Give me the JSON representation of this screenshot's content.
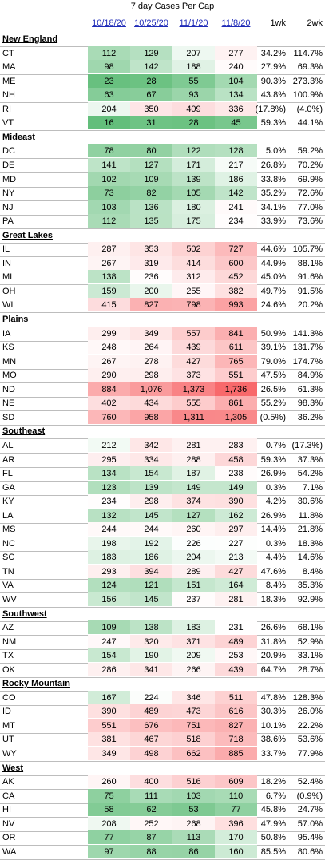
{
  "title": "7 day Cases Per Cap",
  "columns": [
    "10/18/20",
    "10/25/20",
    "11/1/20",
    "11/8/20",
    "1wk",
    "2wk"
  ],
  "regions": [
    {
      "name": "New England",
      "states": [
        [
          "CT",
          "112",
          "129",
          "207",
          "277",
          "34.2%",
          "114.7%"
        ],
        [
          "MA",
          "98",
          "142",
          "188",
          "240",
          "27.9%",
          "69.3%"
        ],
        [
          "ME",
          "23",
          "28",
          "55",
          "104",
          "90.3%",
          "273.3%"
        ],
        [
          "NH",
          "63",
          "67",
          "93",
          "134",
          "43.8%",
          "100.9%"
        ],
        [
          "RI",
          "204",
          "350",
          "409",
          "336",
          "(17.8%)",
          "(4.0%)"
        ],
        [
          "VT",
          "16",
          "31",
          "28",
          "45",
          "59.3%",
          "44.1%"
        ]
      ]
    },
    {
      "name": "Mideast",
      "states": [
        [
          "DC",
          "78",
          "80",
          "122",
          "128",
          "5.0%",
          "59.2%"
        ],
        [
          "DE",
          "141",
          "127",
          "171",
          "217",
          "26.8%",
          "70.2%"
        ],
        [
          "MD",
          "102",
          "109",
          "139",
          "186",
          "33.8%",
          "69.9%"
        ],
        [
          "NY",
          "73",
          "82",
          "105",
          "142",
          "35.2%",
          "72.6%"
        ],
        [
          "NJ",
          "103",
          "136",
          "180",
          "241",
          "34.1%",
          "77.0%"
        ],
        [
          "PA",
          "112",
          "135",
          "175",
          "234",
          "33.9%",
          "73.6%"
        ]
      ]
    },
    {
      "name": "Great Lakes",
      "states": [
        [
          "IL",
          "287",
          "353",
          "502",
          "727",
          "44.6%",
          "105.7%"
        ],
        [
          "IN",
          "267",
          "319",
          "414",
          "600",
          "44.9%",
          "88.1%"
        ],
        [
          "MI",
          "138",
          "236",
          "312",
          "452",
          "45.0%",
          "91.6%"
        ],
        [
          "OH",
          "159",
          "200",
          "255",
          "382",
          "49.7%",
          "91.5%"
        ],
        [
          "WI",
          "415",
          "827",
          "798",
          "993",
          "24.6%",
          "20.2%"
        ]
      ]
    },
    {
      "name": "Plains",
      "states": [
        [
          "IA",
          "299",
          "349",
          "557",
          "841",
          "50.9%",
          "141.3%"
        ],
        [
          "KS",
          "248",
          "264",
          "439",
          "611",
          "39.1%",
          "131.7%"
        ],
        [
          "MN",
          "267",
          "278",
          "427",
          "765",
          "79.0%",
          "174.7%"
        ],
        [
          "MO",
          "290",
          "298",
          "373",
          "551",
          "47.5%",
          "84.9%"
        ],
        [
          "ND",
          "884",
          "1,076",
          "1,373",
          "1,736",
          "26.5%",
          "61.3%"
        ],
        [
          "NE",
          "402",
          "434",
          "555",
          "861",
          "55.2%",
          "98.3%"
        ],
        [
          "SD",
          "760",
          "958",
          "1,311",
          "1,305",
          "(0.5%)",
          "36.2%"
        ]
      ]
    },
    {
      "name": "Southeast",
      "states": [
        [
          "AL",
          "212",
          "342",
          "281",
          "283",
          "0.7%",
          "(17.3%)"
        ],
        [
          "AR",
          "295",
          "334",
          "288",
          "458",
          "59.3%",
          "37.3%"
        ],
        [
          "FL",
          "134",
          "154",
          "187",
          "238",
          "26.9%",
          "54.2%"
        ],
        [
          "GA",
          "123",
          "139",
          "149",
          "149",
          "0.3%",
          "7.1%"
        ],
        [
          "KY",
          "234",
          "298",
          "374",
          "390",
          "4.2%",
          "30.6%"
        ],
        [
          "LA",
          "132",
          "145",
          "127",
          "162",
          "26.9%",
          "11.8%"
        ],
        [
          "MS",
          "244",
          "244",
          "260",
          "297",
          "14.4%",
          "21.8%"
        ],
        [
          "NC",
          "198",
          "192",
          "226",
          "227",
          "0.3%",
          "18.3%"
        ],
        [
          "SC",
          "183",
          "186",
          "204",
          "213",
          "4.4%",
          "14.6%"
        ],
        [
          "TN",
          "293",
          "394",
          "289",
          "427",
          "47.6%",
          "8.4%"
        ],
        [
          "VA",
          "124",
          "121",
          "151",
          "164",
          "8.4%",
          "35.3%"
        ],
        [
          "WV",
          "156",
          "145",
          "237",
          "281",
          "18.3%",
          "92.9%"
        ]
      ]
    },
    {
      "name": "Southwest",
      "states": [
        [
          "AZ",
          "109",
          "138",
          "183",
          "231",
          "26.6%",
          "68.1%"
        ],
        [
          "NM",
          "247",
          "320",
          "371",
          "489",
          "31.8%",
          "52.9%"
        ],
        [
          "TX",
          "154",
          "190",
          "209",
          "253",
          "20.9%",
          "33.1%"
        ],
        [
          "OK",
          "286",
          "341",
          "266",
          "439",
          "64.7%",
          "28.7%"
        ]
      ]
    },
    {
      "name": "Rocky Mountain",
      "states": [
        [
          "CO",
          "167",
          "224",
          "346",
          "511",
          "47.8%",
          "128.3%"
        ],
        [
          "ID",
          "390",
          "489",
          "473",
          "616",
          "30.3%",
          "26.0%"
        ],
        [
          "MT",
          "551",
          "676",
          "751",
          "827",
          "10.1%",
          "22.2%"
        ],
        [
          "UT",
          "381",
          "467",
          "518",
          "718",
          "38.6%",
          "53.6%"
        ],
        [
          "WY",
          "349",
          "498",
          "662",
          "885",
          "33.7%",
          "77.9%"
        ]
      ]
    },
    {
      "name": "West",
      "states": [
        [
          "AK",
          "260",
          "400",
          "516",
          "609",
          "18.2%",
          "52.4%"
        ],
        [
          "CA",
          "75",
          "111",
          "103",
          "110",
          "6.7%",
          "(0.9%)"
        ],
        [
          "HI",
          "58",
          "62",
          "53",
          "77",
          "45.8%",
          "24.7%"
        ],
        [
          "NV",
          "208",
          "252",
          "268",
          "396",
          "47.9%",
          "57.0%"
        ],
        [
          "OR",
          "77",
          "87",
          "113",
          "170",
          "50.8%",
          "95.4%"
        ],
        [
          "WA",
          "97",
          "88",
          "86",
          "160",
          "85.5%",
          "80.6%"
        ]
      ]
    }
  ]
}
